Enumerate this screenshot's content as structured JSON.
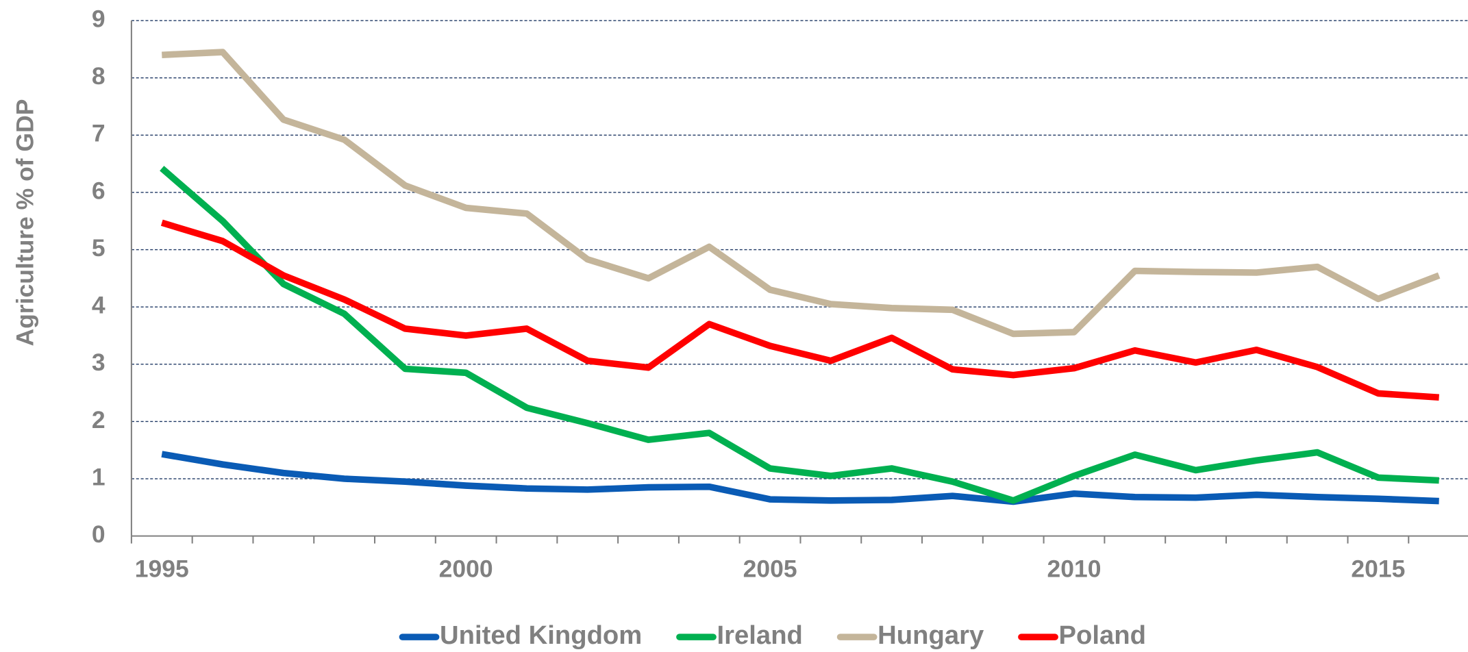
{
  "chart_data": {
    "type": "line",
    "y_label": "Agriculture % of GDP",
    "categories": [
      "1995",
      null,
      null,
      null,
      null,
      "2000",
      null,
      null,
      null,
      null,
      "2005",
      null,
      null,
      null,
      null,
      "2010",
      null,
      null,
      null,
      null,
      "2015",
      null
    ],
    "series": [
      {
        "name": "United Kingdom",
        "color": "#0a5bb5",
        "values": [
          1.43,
          1.25,
          1.1,
          1.0,
          0.95,
          0.88,
          0.83,
          0.81,
          0.85,
          0.86,
          0.64,
          0.62,
          0.63,
          0.7,
          0.6,
          0.74,
          0.68,
          0.67,
          0.72,
          0.68,
          0.65,
          0.61
        ]
      },
      {
        "name": "Ireland",
        "color": "#00b050",
        "values": [
          6.42,
          5.5,
          4.4,
          3.88,
          2.92,
          2.85,
          2.24,
          1.97,
          1.68,
          1.8,
          1.18,
          1.05,
          1.18,
          0.95,
          0.62,
          1.05,
          1.42,
          1.15,
          1.32,
          1.46,
          1.02,
          0.97
        ]
      },
      {
        "name": "Hungary",
        "color": "#c4b59a",
        "values": [
          8.4,
          8.45,
          7.27,
          6.92,
          6.12,
          5.73,
          5.63,
          4.83,
          4.5,
          5.05,
          4.3,
          4.05,
          3.98,
          3.95,
          3.53,
          3.56,
          4.63,
          4.61,
          4.6,
          4.7,
          4.14,
          4.55
        ]
      },
      {
        "name": "Poland",
        "color": "#ff0000",
        "values": [
          5.47,
          5.15,
          4.55,
          4.13,
          3.62,
          3.5,
          3.62,
          3.06,
          2.94,
          3.7,
          3.32,
          3.06,
          3.46,
          2.91,
          2.81,
          2.93,
          3.24,
          3.03,
          3.25,
          2.95,
          2.49,
          2.42
        ]
      }
    ],
    "ylim": [
      0,
      9
    ],
    "yticks": [
      0,
      1,
      2,
      3,
      4,
      5,
      6,
      7,
      8,
      9
    ],
    "grid": true,
    "legend": "bottom"
  }
}
